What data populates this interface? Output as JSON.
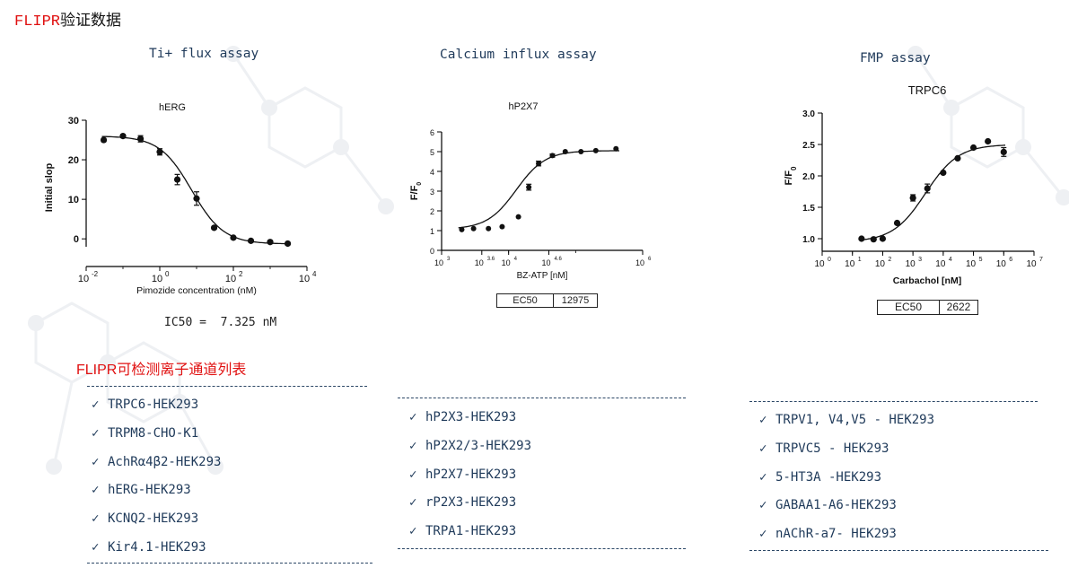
{
  "page": {
    "title_red": "FLIPR",
    "title_black": "验证数据"
  },
  "assays": [
    {
      "title": "Ti+ flux assay"
    },
    {
      "title": "Calcium influx assay"
    },
    {
      "title": "FMP assay"
    }
  ],
  "chart_data": [
    {
      "type": "scatter",
      "title": "hERG",
      "xlabel": "Pimozide concentration (nM)",
      "ylabel": "Initial slop",
      "x_scale": "log10",
      "xlim": [
        0.01,
        10000
      ],
      "ylim": [
        -2,
        30
      ],
      "xticks": [
        0.01,
        1,
        100,
        10000
      ],
      "xtick_labels": [
        "10",
        "10",
        "10",
        "10"
      ],
      "xtick_exponents": [
        "-2",
        "0",
        "2",
        "4"
      ],
      "yticks": [
        0,
        10,
        20,
        30
      ],
      "ytick_labels": [
        "0",
        "10",
        "20",
        "30"
      ],
      "series": [
        {
          "x": [
            0.03,
            0.1,
            0.3,
            1,
            3,
            10,
            30,
            100,
            300,
            1000,
            3000
          ],
          "y": [
            25,
            26,
            25.3,
            22,
            15,
            10.2,
            2.8,
            0.3,
            -0.5,
            -0.8,
            -1.2
          ],
          "err": [
            0.4,
            0.4,
            0.8,
            0.8,
            1.3,
            1.7,
            0.3,
            0.3,
            0.3,
            0.3,
            0.3
          ]
        }
      ],
      "fit": {
        "model": "4PL",
        "top": 26,
        "bottom": -1.3,
        "ec50": 7.325,
        "hill": -1
      },
      "annotation": {
        "label": "IC50 =",
        "value": "7.325 nM"
      }
    },
    {
      "type": "scatter",
      "title": "hP2X7",
      "xlabel": "BZ-ATP [nM]",
      "ylabel": "F/F",
      "ylabel_sub": "0",
      "x_scale": "log10",
      "xlim": [
        1000,
        1000000
      ],
      "ylim": [
        0,
        6
      ],
      "xticks": [
        1000,
        3981,
        10000,
        39811,
        1000000
      ],
      "xtick_labels": [
        "10",
        "10",
        "10",
        "10",
        "10"
      ],
      "xtick_exponents": [
        "3",
        "3.6",
        "4",
        "4.6",
        "6"
      ],
      "yticks": [
        0,
        1,
        2,
        3,
        4,
        5,
        6
      ],
      "ytick_labels": [
        "0",
        "1",
        "2",
        "3",
        "4",
        "5",
        "6"
      ],
      "series": [
        {
          "x": [
            2000,
            3000,
            5000,
            8000,
            14000,
            20000,
            28000,
            45000,
            70000,
            120000,
            200000,
            400000
          ],
          "y": [
            1.05,
            1.1,
            1.1,
            1.2,
            1.7,
            3.2,
            4.4,
            4.8,
            5.0,
            5.0,
            5.05,
            5.15
          ],
          "err": [
            0,
            0,
            0,
            0,
            0,
            0.15,
            0.12,
            0.08,
            0,
            0,
            0,
            0
          ]
        }
      ],
      "fit": {
        "model": "4PL",
        "top": 5.05,
        "bottom": 1.07,
        "ec50": 12975,
        "hill": 2
      },
      "annotation": {
        "label": "EC50",
        "value": "12975"
      }
    },
    {
      "type": "scatter",
      "title": "TRPC6",
      "xlabel": "Carbachol [nM]",
      "ylabel": "F/F",
      "ylabel_sub": "0",
      "x_scale": "log10",
      "xlim": [
        1,
        10000000
      ],
      "ylim": [
        0.8,
        3.0
      ],
      "xticks": [
        1,
        10,
        100,
        1000,
        10000,
        100000,
        1000000,
        10000000
      ],
      "xtick_labels": [
        "10",
        "10",
        "10",
        "10",
        "10",
        "10",
        "10",
        "10"
      ],
      "xtick_exponents": [
        "0",
        "1",
        "2",
        "3",
        "4",
        "5",
        "6",
        "7"
      ],
      "yticks": [
        1.0,
        1.5,
        2.0,
        2.5,
        3.0
      ],
      "ytick_labels": [
        "1.0",
        "1.5",
        "2.0",
        "2.5",
        "3.0"
      ],
      "series": [
        {
          "x": [
            20,
            50,
            100,
            300,
            1000,
            3000,
            10000,
            30000,
            100000,
            300000,
            1000000
          ],
          "y": [
            1.0,
            0.99,
            1.0,
            1.25,
            1.65,
            1.8,
            2.05,
            2.28,
            2.45,
            2.55,
            2.38
          ],
          "err": [
            0,
            0,
            0,
            0,
            0.05,
            0.07,
            0,
            0,
            0,
            0,
            0.07
          ]
        }
      ],
      "fit": {
        "model": "4PL",
        "top": 2.5,
        "bottom": 0.95,
        "ec50": 2622,
        "hill": 0.8
      },
      "annotation": {
        "label": "EC50",
        "value": "2622"
      }
    }
  ],
  "list_title": "FLIPR可检测离子通道列表",
  "check_mark": "✓",
  "lists": [
    [
      "TRPC6-HEK293",
      "TRPM8-CHO-K1",
      "AchRα4β2-HEK293",
      "hERG-HEK293",
      "KCNQ2-HEK293",
      "Kir4.1-HEK293"
    ],
    [
      "hP2X3-HEK293",
      "hP2X2/3-HEK293",
      "hP2X7-HEK293",
      "rP2X3-HEK293",
      "TRPA1-HEK293"
    ],
    [
      "TRPV1, V4,V5 - HEK293",
      "TRPVC5 - HEK293",
      "5-HT3A  -HEK293",
      "GABAA1-A6-HEK293",
      "nAChR-a7- HEK293"
    ]
  ]
}
